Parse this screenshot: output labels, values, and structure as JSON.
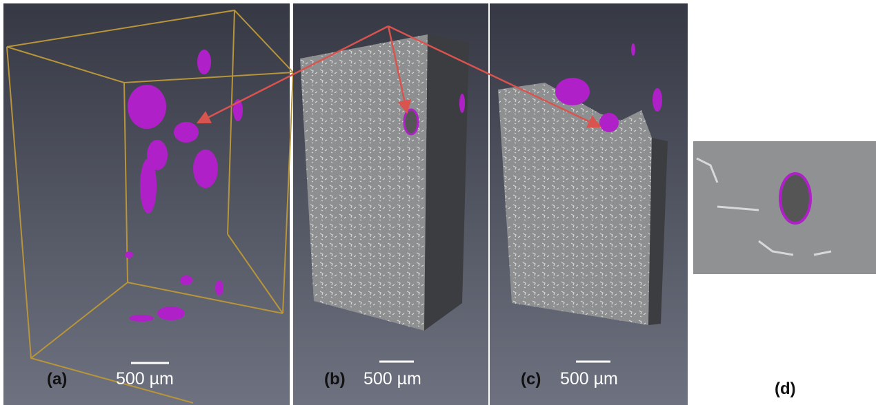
{
  "panels": [
    {
      "label": "(a)",
      "scale_bar": "500 µm"
    },
    {
      "label": "(b)",
      "scale_bar": "500 µm"
    },
    {
      "label": "(c)",
      "scale_bar": "500 µm"
    },
    {
      "label": "(d)"
    }
  ]
}
